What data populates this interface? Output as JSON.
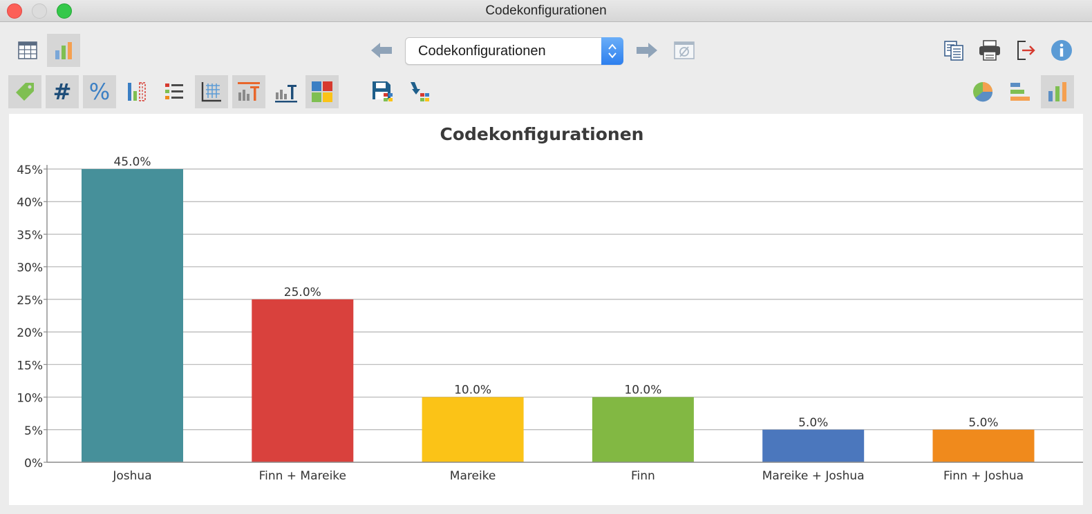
{
  "window": {
    "title": "Codekonfigurationen"
  },
  "toolbar": {
    "selector_value": "Codekonfigurationen",
    "view_buttons": [
      {
        "name": "table-view-button",
        "icon": "table-icon",
        "active": false
      },
      {
        "name": "chart-view-button",
        "icon": "bar-chart-icon",
        "active": true
      }
    ],
    "nav": {
      "back_icon": "arrow-left-icon",
      "forward_icon": "arrow-right-icon",
      "clear_icon": "empty-set-icon"
    },
    "right_buttons": [
      "copy-icon",
      "print-icon",
      "export-icon",
      "info-icon"
    ],
    "format_buttons": [
      {
        "name": "labels-toggle",
        "icon": "tag-icon",
        "active": true
      },
      {
        "name": "absolute-values-toggle",
        "icon": "hash-icon",
        "active": true
      },
      {
        "name": "percent-toggle",
        "icon": "percent-icon",
        "active": true
      },
      {
        "name": "axis-scale-toggle",
        "icon": "scale-bars-icon",
        "active": false
      },
      {
        "name": "legend-toggle",
        "icon": "legend-icon",
        "active": false
      },
      {
        "name": "gridlines-toggle",
        "icon": "grid-icon",
        "active": true
      },
      {
        "name": "title-toggle",
        "icon": "chart-title-icon",
        "active": true
      },
      {
        "name": "axis-title-toggle",
        "icon": "axis-title-icon",
        "active": false
      },
      {
        "name": "colors-button",
        "icon": "color-palette-icon",
        "active": true
      }
    ],
    "file_buttons": [
      "save-icon",
      "send-to-icon"
    ],
    "chart_type_buttons": [
      {
        "name": "pie-chart-button",
        "icon": "pie-chart-icon",
        "active": false
      },
      {
        "name": "horizontal-bar-button",
        "icon": "horizontal-bar-icon",
        "active": false
      },
      {
        "name": "vertical-bar-button",
        "icon": "vertical-bar-icon",
        "active": true
      }
    ]
  },
  "chart_data": {
    "type": "bar",
    "title": "Codekonfigurationen",
    "xlabel": "",
    "ylabel": "",
    "categories": [
      "Joshua",
      "Finn + Mareike",
      "Mareike",
      "Finn",
      "Mareike + Joshua",
      "Finn + Joshua"
    ],
    "values": [
      45.0,
      25.0,
      10.0,
      10.0,
      5.0,
      5.0
    ],
    "value_labels": [
      "45.0%",
      "25.0%",
      "10.0%",
      "10.0%",
      "5.0%",
      "5.0%"
    ],
    "colors": [
      "#46909a",
      "#d9413d",
      "#fbc317",
      "#82b843",
      "#4b77bd",
      "#f08a1c"
    ],
    "ylim": [
      0,
      45
    ],
    "yticks": [
      0,
      5,
      10,
      15,
      20,
      25,
      30,
      35,
      40,
      45
    ],
    "ytick_labels": [
      "0%",
      "5%",
      "10%",
      "15%",
      "20%",
      "25%",
      "30%",
      "35%",
      "40%",
      "45%"
    ],
    "grid": true,
    "legend": "none"
  }
}
